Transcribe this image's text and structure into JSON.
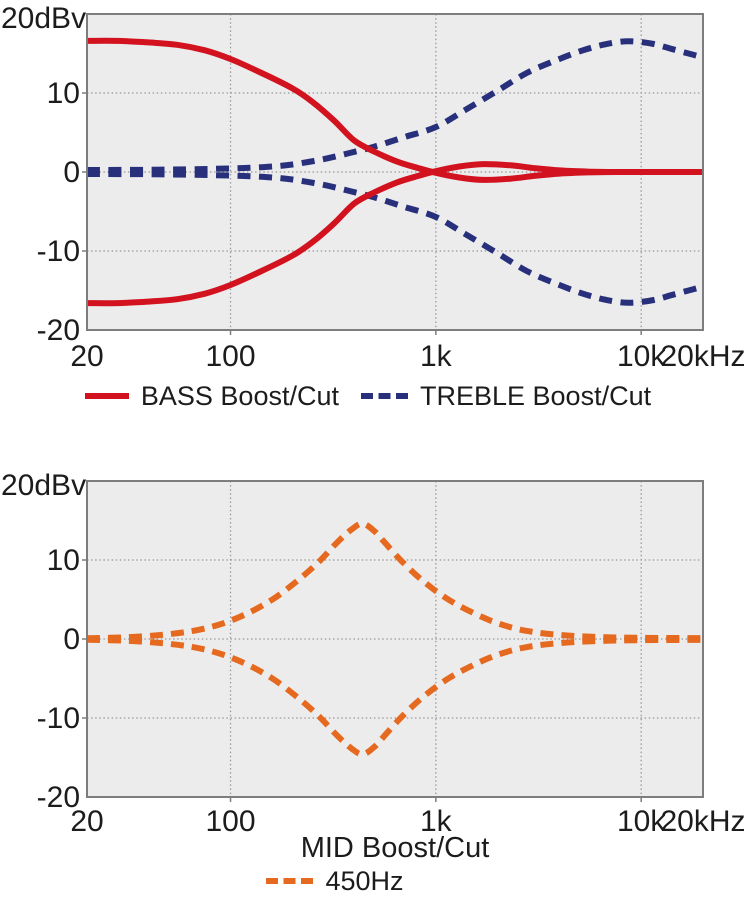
{
  "colors": {
    "plot_bg": "#ececec",
    "grid": "#999999",
    "frame": "#7d7d7d",
    "text": "#1c1c1c",
    "bass_red": "#d2121e",
    "treble_navy": "#28307c",
    "mid_orange": "#e56a20"
  },
  "chart_data": [
    {
      "type": "line",
      "y_unit_label": "20dBv",
      "xlabel": "",
      "x_scale": "log",
      "x_range": [
        20,
        20000
      ],
      "y_range": [
        -20,
        20
      ],
      "grid": true,
      "legend_position": "bottom",
      "x_ticks": [
        {
          "f": 20,
          "label": "20",
          "grid": false
        },
        {
          "f": 100,
          "label": "100",
          "grid": true
        },
        {
          "f": 1000,
          "label": "1k",
          "grid": true
        },
        {
          "f": 10000,
          "label": "10k",
          "grid": true
        },
        {
          "f": 20000,
          "label": "20kHz",
          "grid": false
        }
      ],
      "y_ticks": [
        {
          "db": 10,
          "label": "10",
          "grid": true
        },
        {
          "db": 0,
          "label": "0",
          "grid": true
        },
        {
          "db": -10,
          "label": "-10",
          "grid": true
        },
        {
          "db": -20,
          "label": "-20",
          "grid": false
        }
      ],
      "legend": [
        {
          "label": "BASS Boost/Cut",
          "color": "#d2121e",
          "style": "solid"
        },
        {
          "label": "TREBLE Boost/Cut",
          "color": "#28307c",
          "style": "dashed"
        }
      ],
      "series": [
        {
          "id": "treble-boost",
          "name": "TREBLE Boost (dB vs Hz)",
          "color": "#28307c",
          "width": 6,
          "dash": "13 8.5",
          "points": [
            [
              20,
              0.25
            ],
            [
              50,
              0.3
            ],
            [
              100,
              0.45
            ],
            [
              150,
              0.65
            ],
            [
              200,
              0.95
            ],
            [
              280,
              1.6
            ],
            [
              380,
              2.4
            ],
            [
              500,
              3.2
            ],
            [
              700,
              4.4
            ],
            [
              1000,
              5.7
            ],
            [
              1400,
              7.9
            ],
            [
              2000,
              10.3
            ],
            [
              2800,
              12.6
            ],
            [
              4000,
              14.3
            ],
            [
              5200,
              15.4
            ],
            [
              6500,
              16.1
            ],
            [
              8000,
              16.5
            ],
            [
              9500,
              16.5
            ],
            [
              11500,
              16.2
            ],
            [
              14000,
              15.6
            ],
            [
              17000,
              15.0
            ],
            [
              20000,
              14.5
            ]
          ]
        },
        {
          "id": "treble-cut",
          "name": "TREBLE Cut (dB vs Hz)",
          "color": "#28307c",
          "width": 6,
          "dash": "13 8.5",
          "points": [
            [
              20,
              -0.25
            ],
            [
              50,
              -0.3
            ],
            [
              100,
              -0.45
            ],
            [
              150,
              -0.65
            ],
            [
              200,
              -0.95
            ],
            [
              280,
              -1.6
            ],
            [
              380,
              -2.4
            ],
            [
              500,
              -3.2
            ],
            [
              700,
              -4.4
            ],
            [
              1000,
              -5.7
            ],
            [
              1400,
              -7.9
            ],
            [
              2000,
              -10.3
            ],
            [
              2800,
              -12.6
            ],
            [
              4000,
              -14.3
            ],
            [
              5200,
              -15.4
            ],
            [
              6500,
              -16.1
            ],
            [
              8000,
              -16.5
            ],
            [
              9500,
              -16.5
            ],
            [
              11500,
              -16.2
            ],
            [
              14000,
              -15.6
            ],
            [
              17000,
              -15.0
            ],
            [
              20000,
              -14.5
            ]
          ]
        },
        {
          "id": "bass-boost",
          "name": "BASS Boost (dB vs Hz)",
          "color": "#d2121e",
          "width": 6,
          "dash": null,
          "points": [
            [
              20,
              16.6
            ],
            [
              28,
              16.6
            ],
            [
              40,
              16.4
            ],
            [
              55,
              16.1
            ],
            [
              75,
              15.4
            ],
            [
              100,
              14.3
            ],
            [
              140,
              12.6
            ],
            [
              200,
              10.6
            ],
            [
              250,
              8.9
            ],
            [
              320,
              6.5
            ],
            [
              400,
              4.0
            ],
            [
              500,
              2.6
            ],
            [
              650,
              1.3
            ],
            [
              820,
              0.5
            ],
            [
              1000,
              -0.1
            ],
            [
              1300,
              -0.7
            ],
            [
              1700,
              -1.0
            ],
            [
              2300,
              -0.85
            ],
            [
              3000,
              -0.5
            ],
            [
              4000,
              -0.2
            ],
            [
              5500,
              -0.05
            ],
            [
              8000,
              0
            ],
            [
              20000,
              0
            ]
          ]
        },
        {
          "id": "bass-cut",
          "name": "BASS Cut (dB vs Hz)",
          "color": "#d2121e",
          "width": 6,
          "dash": null,
          "points": [
            [
              20,
              -16.6
            ],
            [
              28,
              -16.6
            ],
            [
              40,
              -16.4
            ],
            [
              55,
              -16.1
            ],
            [
              75,
              -15.4
            ],
            [
              100,
              -14.3
            ],
            [
              140,
              -12.6
            ],
            [
              200,
              -10.6
            ],
            [
              250,
              -8.9
            ],
            [
              320,
              -6.5
            ],
            [
              400,
              -4.0
            ],
            [
              500,
              -2.6
            ],
            [
              650,
              -1.3
            ],
            [
              820,
              -0.5
            ],
            [
              1000,
              0.1
            ],
            [
              1300,
              0.7
            ],
            [
              1700,
              1.0
            ],
            [
              2300,
              0.85
            ],
            [
              3000,
              0.5
            ],
            [
              4000,
              0.2
            ],
            [
              5500,
              0.05
            ],
            [
              8000,
              0
            ],
            [
              20000,
              0
            ]
          ]
        }
      ]
    },
    {
      "type": "line",
      "y_unit_label": "20dBv",
      "xlabel": "MID Boost/Cut",
      "x_scale": "log",
      "x_range": [
        20,
        20000
      ],
      "y_range": [
        -20,
        20
      ],
      "grid": true,
      "legend_position": "bottom",
      "x_ticks": [
        {
          "f": 20,
          "label": "20",
          "grid": false
        },
        {
          "f": 100,
          "label": "100",
          "grid": true
        },
        {
          "f": 1000,
          "label": "1k",
          "grid": true
        },
        {
          "f": 10000,
          "label": "10k",
          "grid": true
        },
        {
          "f": 20000,
          "label": "20kHz",
          "grid": false
        }
      ],
      "y_ticks": [
        {
          "db": 10,
          "label": "10",
          "grid": true
        },
        {
          "db": 0,
          "label": "0",
          "grid": true
        },
        {
          "db": -10,
          "label": "-10",
          "grid": true
        },
        {
          "db": -20,
          "label": "-20",
          "grid": false
        }
      ],
      "legend": [
        {
          "label": "450Hz",
          "color": "#e56a20",
          "style": "dashed"
        }
      ],
      "series": [
        {
          "id": "mid-boost",
          "name": "MID Boost 450Hz (dB vs Hz)",
          "color": "#e56a20",
          "width": 6,
          "dash": "13 8",
          "points": [
            [
              20,
              0.1
            ],
            [
              30,
              0.2
            ],
            [
              45,
              0.5
            ],
            [
              65,
              1.0
            ],
            [
              90,
              1.9
            ],
            [
              120,
              3.2
            ],
            [
              160,
              5.0
            ],
            [
              210,
              7.3
            ],
            [
              270,
              9.8
            ],
            [
              330,
              12.2
            ],
            [
              390,
              13.9
            ],
            [
              440,
              14.6
            ],
            [
              500,
              13.7
            ],
            [
              560,
              12.3
            ],
            [
              685,
              9.8
            ],
            [
              870,
              7.3
            ],
            [
              1150,
              5.0
            ],
            [
              1550,
              3.2
            ],
            [
              2050,
              1.9
            ],
            [
              2800,
              1.0
            ],
            [
              4100,
              0.5
            ],
            [
              6200,
              0.25
            ],
            [
              10000,
              0.15
            ],
            [
              20000,
              0.1
            ]
          ]
        },
        {
          "id": "mid-cut",
          "name": "MID Cut 450Hz (dB vs Hz)",
          "color": "#e56a20",
          "width": 6,
          "dash": "13 8",
          "points": [
            [
              20,
              -0.1
            ],
            [
              30,
              -0.2
            ],
            [
              45,
              -0.5
            ],
            [
              65,
              -1.0
            ],
            [
              90,
              -1.9
            ],
            [
              120,
              -3.2
            ],
            [
              160,
              -5.0
            ],
            [
              210,
              -7.3
            ],
            [
              270,
              -9.8
            ],
            [
              330,
              -12.2
            ],
            [
              390,
              -13.9
            ],
            [
              440,
              -14.6
            ],
            [
              500,
              -13.7
            ],
            [
              560,
              -12.3
            ],
            [
              685,
              -9.8
            ],
            [
              870,
              -7.3
            ],
            [
              1150,
              -5.0
            ],
            [
              1550,
              -3.2
            ],
            [
              2050,
              -1.9
            ],
            [
              2800,
              -1.0
            ],
            [
              4100,
              -0.5
            ],
            [
              6200,
              -0.25
            ],
            [
              10000,
              -0.15
            ],
            [
              20000,
              -0.1
            ]
          ]
        }
      ]
    }
  ]
}
